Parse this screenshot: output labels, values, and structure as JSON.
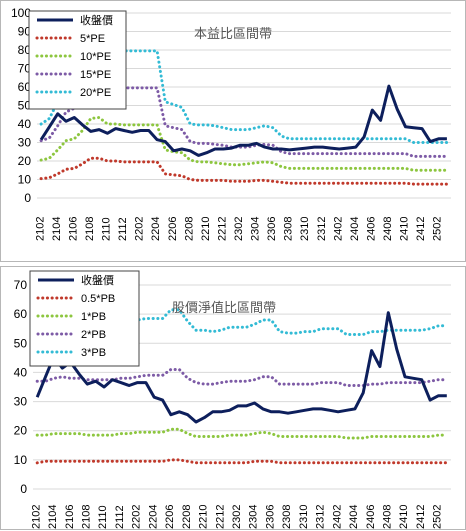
{
  "chart_data": [
    {
      "type": "line",
      "title": "本益比區間帶",
      "ylim": [
        0,
        100
      ],
      "yticks": [
        0,
        10,
        20,
        30,
        40,
        50,
        60,
        70,
        80,
        90,
        100
      ],
      "xticks": [
        "2102",
        "2104",
        "2106",
        "2108",
        "2110",
        "2112",
        "2202",
        "2204",
        "2206",
        "2208",
        "2210",
        "2212",
        "2302",
        "2304",
        "2306",
        "2308",
        "2310",
        "2312",
        "2402",
        "2404",
        "2406",
        "2408",
        "2410",
        "2412",
        "2502"
      ],
      "legend_position": "top-left",
      "grid": "horizontal",
      "series": [
        {
          "name": "收盤價",
          "color": "#0d1f5c",
          "style": "solid",
          "values": [
            31.5,
            38.5,
            45.5,
            41.5,
            43.5,
            39.5,
            36.0,
            37.0,
            35.0,
            37.5,
            36.5,
            35.5,
            36.5,
            36.5,
            31.5,
            30.5,
            25.5,
            26.5,
            25.5,
            23.0,
            24.5,
            26.5,
            26.5,
            27.0,
            28.5,
            28.5,
            29.5,
            27.5,
            26.5,
            26.5,
            26.0,
            26.5,
            27.0,
            27.5,
            27.5,
            27.0,
            26.5,
            27.0,
            27.5,
            33.0,
            47.5,
            42.0,
            60.5,
            48.0,
            38.5,
            38.0,
            37.5,
            30.5,
            32.0,
            32.0
          ]
        },
        {
          "name": "5*PE",
          "color": "#c0392b",
          "style": "dotted",
          "values": [
            10.5,
            11,
            13,
            15.5,
            16,
            18.5,
            21.5,
            21.5,
            20,
            20,
            19.5,
            19.5,
            19.5,
            19.5,
            19.5,
            13,
            12.5,
            12,
            10,
            9.5,
            9.5,
            9.5,
            9.5,
            9,
            9,
            9,
            9.5,
            9.5,
            9,
            8.5,
            8,
            8,
            8,
            8,
            8,
            8,
            8,
            8,
            8,
            8,
            8,
            8,
            8,
            8,
            8,
            7.5,
            7.5,
            7.5,
            7.5,
            7.5
          ]
        },
        {
          "name": "10*PE",
          "color": "#8dc63f",
          "style": "dotted",
          "values": [
            20.5,
            21.5,
            26,
            31,
            32,
            36.5,
            43,
            43.5,
            40,
            40,
            39.5,
            39.5,
            39.5,
            39.5,
            39.5,
            26,
            25,
            24.5,
            20.5,
            19.5,
            19.5,
            19,
            18.5,
            18,
            18,
            18.5,
            19,
            19.5,
            19,
            17,
            16,
            16,
            16,
            16,
            16,
            16,
            16,
            16,
            16,
            16,
            16,
            16,
            16,
            16,
            16,
            15,
            15,
            15,
            15,
            15
          ]
        },
        {
          "name": "15*PE",
          "color": "#7d5ba6",
          "style": "dotted",
          "values": [
            31,
            32.5,
            39,
            46.5,
            48.5,
            55,
            60,
            60,
            60,
            60,
            59.5,
            59.5,
            59.5,
            59.5,
            59.5,
            39,
            38,
            37,
            30.5,
            29.5,
            29.5,
            29,
            28.5,
            27.5,
            27.5,
            27.5,
            28.5,
            29,
            28.5,
            25,
            24,
            24,
            24,
            24,
            24,
            24,
            24,
            24,
            24,
            24,
            24,
            24,
            24,
            24,
            24,
            22.5,
            22.5,
            22.5,
            22.5,
            22.5
          ]
        },
        {
          "name": "20*PE",
          "color": "#33bbd5",
          "style": "dotted",
          "values": [
            40,
            43,
            52,
            62,
            64.5,
            73,
            80,
            80,
            80,
            80,
            79.5,
            79.5,
            79.5,
            79.5,
            79.5,
            52,
            50.5,
            49,
            40,
            39.5,
            39.5,
            39,
            38,
            37,
            37,
            37,
            38,
            39,
            38,
            33.5,
            32,
            32,
            32,
            32,
            32,
            32,
            32,
            32,
            32,
            32,
            32,
            32,
            32,
            32,
            32,
            30,
            30,
            30,
            30,
            30
          ]
        }
      ]
    },
    {
      "type": "line",
      "title": "股價淨值比區間帶",
      "ylim": [
        0,
        70
      ],
      "yticks": [
        0,
        10,
        20,
        30,
        40,
        50,
        60,
        70
      ],
      "xticks": [
        "2102",
        "2104",
        "2106",
        "2108",
        "2110",
        "2112",
        "2202",
        "2204",
        "2206",
        "2208",
        "2210",
        "2212",
        "2302",
        "2304",
        "2306",
        "2308",
        "2310",
        "2312",
        "2402",
        "2404",
        "2406",
        "2408",
        "2410",
        "2412",
        "2502"
      ],
      "legend_position": "top-left",
      "grid": "horizontal",
      "series": [
        {
          "name": "收盤價",
          "color": "#0d1f5c",
          "style": "solid",
          "values": [
            31.5,
            38.5,
            45.5,
            41.5,
            43.5,
            39.5,
            36.0,
            37.0,
            35.0,
            37.5,
            36.5,
            35.5,
            36.5,
            36.5,
            31.5,
            30.5,
            25.5,
            26.5,
            25.5,
            23.0,
            24.5,
            26.5,
            26.5,
            27.0,
            28.5,
            28.5,
            29.5,
            27.5,
            26.5,
            26.5,
            26.0,
            26.5,
            27.0,
            27.5,
            27.5,
            27.0,
            26.5,
            27.0,
            27.5,
            33.0,
            47.5,
            42.0,
            60.5,
            48.0,
            38.5,
            38.0,
            37.5,
            30.5,
            32.0,
            32.0
          ]
        },
        {
          "name": "0.5*PB",
          "color": "#c0392b",
          "style": "dotted",
          "values": [
            9,
            9.5,
            9.5,
            9.5,
            9.5,
            9.5,
            9.5,
            9.5,
            9.5,
            9.5,
            9.5,
            9.5,
            9.5,
            9.5,
            9.5,
            9.5,
            10,
            10,
            9.5,
            9,
            9,
            9,
            9,
            9,
            9,
            9,
            9.5,
            9.5,
            9.5,
            9,
            9,
            9,
            9,
            9,
            9,
            9,
            9,
            9,
            9,
            9,
            9,
            9,
            9,
            9,
            9,
            9,
            9,
            9,
            9,
            9
          ]
        },
        {
          "name": "1*PB",
          "color": "#8dc63f",
          "style": "dotted",
          "values": [
            18.5,
            18.5,
            19,
            19,
            19,
            19,
            18.5,
            18.5,
            18.5,
            18.5,
            19,
            19,
            19.5,
            19.5,
            19.5,
            19.5,
            20.5,
            20.5,
            19,
            18,
            18,
            18,
            18,
            18.5,
            18.5,
            18.5,
            19,
            19.5,
            19,
            18,
            18,
            18,
            18,
            18,
            18,
            18,
            18,
            17.5,
            17.5,
            17.5,
            18,
            18,
            18,
            18,
            18,
            18,
            18,
            18,
            18.5,
            18.5
          ]
        },
        {
          "name": "2*PB",
          "color": "#7d5ba6",
          "style": "dotted",
          "values": [
            37,
            37,
            38,
            38.5,
            38,
            38,
            37.5,
            37.5,
            37.5,
            37.5,
            38,
            38,
            38.5,
            39,
            39,
            39,
            41,
            41,
            38,
            36.5,
            36,
            36,
            36.5,
            37,
            37,
            37,
            37.5,
            38.5,
            38.5,
            36,
            36,
            36,
            36,
            36,
            36.5,
            36.5,
            36.5,
            35.5,
            35.5,
            35.5,
            36,
            36,
            36.5,
            36.5,
            36.5,
            36.5,
            36.5,
            37,
            37.5,
            37.5
          ]
        },
        {
          "name": "3*PB",
          "color": "#33bbd5",
          "style": "dotted",
          "values": [
            55,
            55.5,
            56,
            57,
            57,
            57,
            56.5,
            56.5,
            56.5,
            56.5,
            57,
            57,
            58,
            58.5,
            58.5,
            58.5,
            61.5,
            61.5,
            57.5,
            54.5,
            54.5,
            54,
            54.5,
            55.5,
            55.5,
            55.5,
            56.5,
            58,
            58,
            54,
            53.5,
            53.5,
            54,
            54,
            55,
            55,
            55,
            53,
            53,
            53,
            54,
            54,
            54.5,
            54.5,
            54.5,
            54.5,
            54.5,
            55,
            56,
            56
          ]
        }
      ]
    }
  ]
}
